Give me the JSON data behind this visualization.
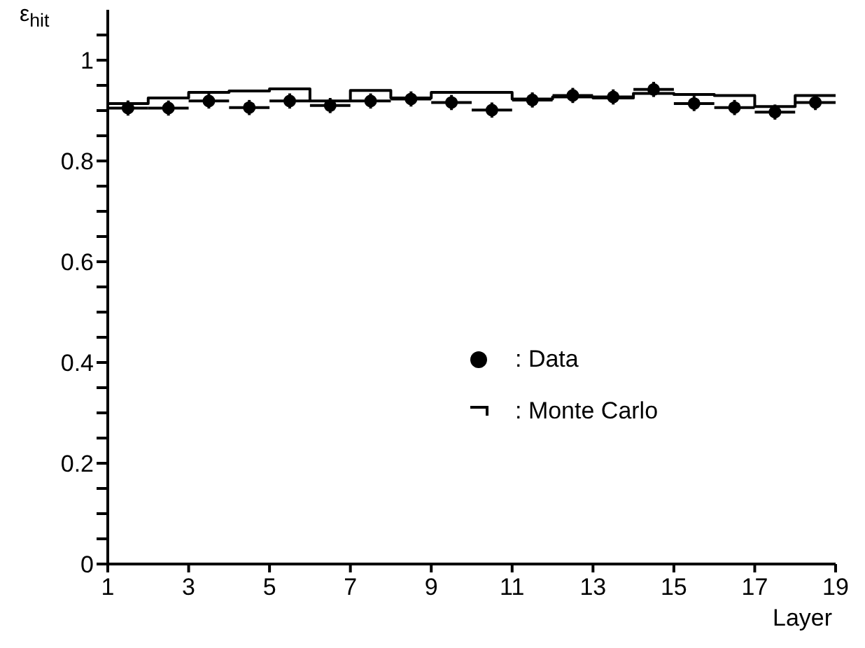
{
  "chart_data": {
    "type": "scatter",
    "xlabel": "Layer",
    "ylabel": "ε$_{hit}$",
    "xlim": [
      1,
      19
    ],
    "xticks": [
      1,
      3,
      5,
      7,
      9,
      11,
      13,
      15,
      17,
      19
    ],
    "ylim": [
      0,
      1.1
    ],
    "yticks": [
      0,
      {
        "value": 0.05,
        "label": null
      },
      {
        "value": 0.1,
        "label": null
      },
      {
        "value": 0.15,
        "label": null
      },
      0.2,
      {
        "value": 0.25,
        "label": null
      },
      {
        "value": 0.3,
        "label": null
      },
      {
        "value": 0.35,
        "label": null
      },
      0.4,
      {
        "value": 0.45,
        "label": null
      },
      {
        "value": 0.5,
        "label": null
      },
      {
        "value": 0.55,
        "label": null
      },
      0.6,
      {
        "value": 0.65,
        "label": null
      },
      {
        "value": 0.7,
        "label": null
      },
      {
        "value": 0.75,
        "label": null
      },
      0.8,
      {
        "value": 0.85,
        "label": null
      },
      {
        "value": 0.9,
        "label": null
      },
      {
        "value": 0.95,
        "label": null
      },
      1,
      {
        "value": 1.05,
        "label": null
      }
    ],
    "legend": "right",
    "series": [
      {
        "name": ": Data",
        "marker": "circle",
        "color": "#000000",
        "x": [
          1.5,
          2.5,
          3.5,
          4.5,
          5.5,
          6.5,
          7.5,
          8.5,
          9.5,
          10.5,
          11.5,
          12.5,
          13.5,
          14.5,
          15.5,
          16.5,
          17.5,
          18.5
        ],
        "values": [
          0.905,
          0.905,
          0.919,
          0.906,
          0.919,
          0.91,
          0.919,
          0.923,
          0.916,
          0.901,
          0.921,
          0.93,
          0.927,
          0.942,
          0.914,
          0.906,
          0.897,
          0.916
        ],
        "errors": [
          0.015,
          0.015,
          0.015,
          0.015,
          0.015,
          0.015,
          0.015,
          0.015,
          0.015,
          0.015,
          0.015,
          0.015,
          0.015,
          0.015,
          0.015,
          0.015,
          0.015,
          0.015
        ],
        "xerrors": [
          0.5,
          0.5,
          0.5,
          0.5,
          0.5,
          0.5,
          0.5,
          0.5,
          0.5,
          0.5,
          0.5,
          0.5,
          0.5,
          0.5,
          0.5,
          0.5,
          0.5,
          0.5
        ]
      },
      {
        "name": ": Monte Carlo",
        "type": "step",
        "color": "#000000",
        "x": [
          1,
          2,
          3,
          4,
          5,
          6,
          7,
          8,
          9,
          10,
          11,
          12,
          13,
          14,
          15,
          16,
          17,
          18,
          19
        ],
        "values": [
          0.914,
          0.925,
          0.936,
          0.939,
          0.943,
          0.919,
          0.94,
          0.925,
          0.936,
          0.936,
          0.923,
          0.927,
          0.925,
          0.934,
          0.932,
          0.93,
          0.908,
          0.93,
          0.93
        ]
      }
    ]
  }
}
